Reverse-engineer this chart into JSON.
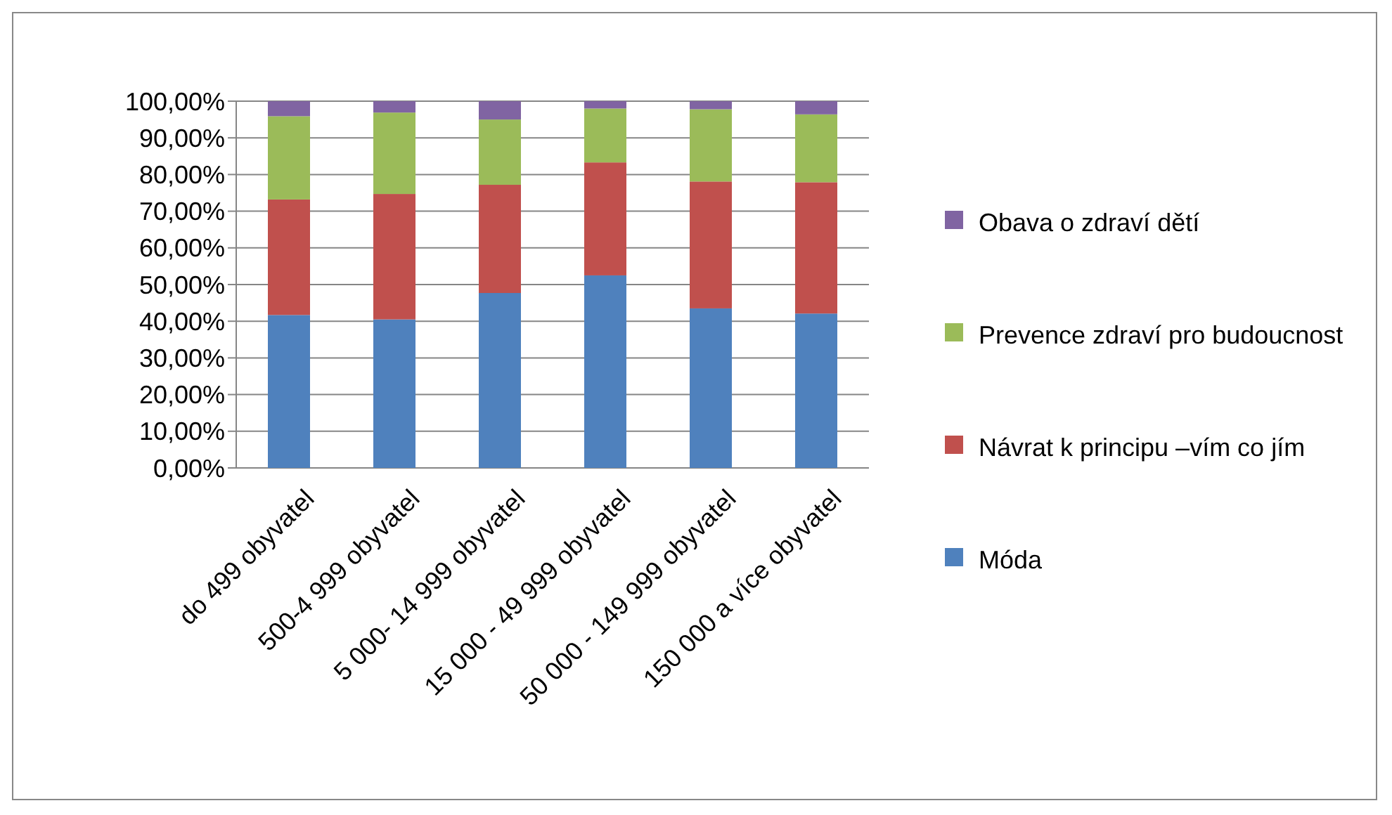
{
  "chart_data": {
    "type": "bar",
    "stacked": true,
    "categories": [
      "do 499 obyvatel",
      "500-4 999 obyvatel",
      "5 000- 14 999 obyvatel",
      "15 000 - 49 999 obyvatel",
      "50 000 - 149 999 obyvatel",
      "150 000 a více obyvatel"
    ],
    "series": [
      {
        "name": "Móda",
        "color": "#4f81bd",
        "values": [
          41.7,
          40.5,
          47.7,
          52.5,
          43.5,
          42.1
        ]
      },
      {
        "name": "Návrat k principu –vím co jím",
        "color": "#c0504d",
        "values": [
          31.5,
          34.2,
          29.5,
          30.8,
          34.6,
          35.8
        ]
      },
      {
        "name": "Prevence zdraví pro budoucnost",
        "color": "#9bbb59",
        "values": [
          22.7,
          22.2,
          17.8,
          14.7,
          19.7,
          18.5
        ]
      },
      {
        "name": "Obava o zdraví dětí",
        "color": "#8064a2",
        "values": [
          4.1,
          3.1,
          5.0,
          2.0,
          2.2,
          3.6
        ]
      }
    ],
    "ylim": [
      0,
      100
    ],
    "yticks": [
      {
        "value": 0,
        "label": "0,00%"
      },
      {
        "value": 10,
        "label": "10,00%"
      },
      {
        "value": 20,
        "label": "20,00%"
      },
      {
        "value": 30,
        "label": "30,00%"
      },
      {
        "value": 40,
        "label": "40,00%"
      },
      {
        "value": 50,
        "label": "50,00%"
      },
      {
        "value": 60,
        "label": "60,00%"
      },
      {
        "value": 70,
        "label": "70,00%"
      },
      {
        "value": 80,
        "label": "80,00%"
      },
      {
        "value": 90,
        "label": "90,00%"
      },
      {
        "value": 100,
        "label": "100,00%"
      }
    ],
    "grid": "y",
    "legend": "right"
  }
}
